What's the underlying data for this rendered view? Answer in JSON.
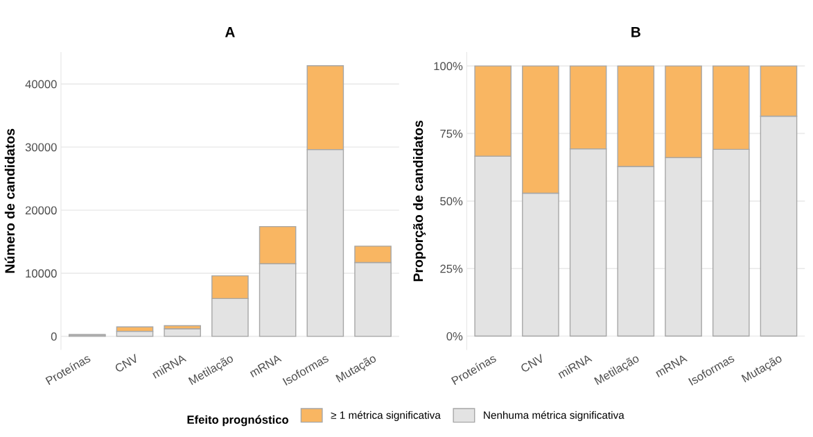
{
  "chart_data": [
    {
      "type": "bar",
      "title": "A",
      "ylabel": "Número de candidatos",
      "stacked": true,
      "grid": "y",
      "legend": "bottom",
      "legend_title": "Efeito prognóstico",
      "categories": [
        "Proteínas",
        "CNV",
        "miRNA",
        "Metilação",
        "mRNA",
        "Isoformas",
        "Mutação"
      ],
      "ylim": [
        -2100,
        45000
      ],
      "yticks": [
        0,
        10000,
        20000,
        30000,
        40000
      ],
      "series": [
        {
          "name": "Nenhuma métrica significativa",
          "color": "#e3e3e3",
          "values": [
            200,
            800,
            1200,
            6000,
            11500,
            29600,
            11700
          ]
        },
        {
          "name": "≥ 1 métrica significativa",
          "color": "#f9b662",
          "values": [
            100,
            700,
            500,
            3600,
            5900,
            13300,
            2600
          ]
        }
      ]
    },
    {
      "type": "bar",
      "title": "B",
      "ylabel": "Proporção de candidatos",
      "stacked": true,
      "grid": "y",
      "categories": [
        "Proteínas",
        "CNV",
        "miRNA",
        "Metilação",
        "mRNA",
        "Isoformas",
        "Mutação"
      ],
      "ylim": [
        -5,
        105
      ],
      "yticks": [
        {
          "value": 0,
          "label": "0%"
        },
        {
          "value": 25,
          "label": "25%"
        },
        {
          "value": 50,
          "label": "50%"
        },
        {
          "value": 75,
          "label": "75%"
        },
        {
          "value": 100,
          "label": "100%"
        }
      ],
      "series": [
        {
          "color": "#e3e3e3",
          "values": [
            66.6,
            52.9,
            69.3,
            62.8,
            66.1,
            69.1,
            81.4
          ]
        },
        {
          "color": "#f9b662",
          "values": [
            33.4,
            47.1,
            30.7,
            37.2,
            33.9,
            30.9,
            18.6
          ]
        }
      ]
    }
  ]
}
